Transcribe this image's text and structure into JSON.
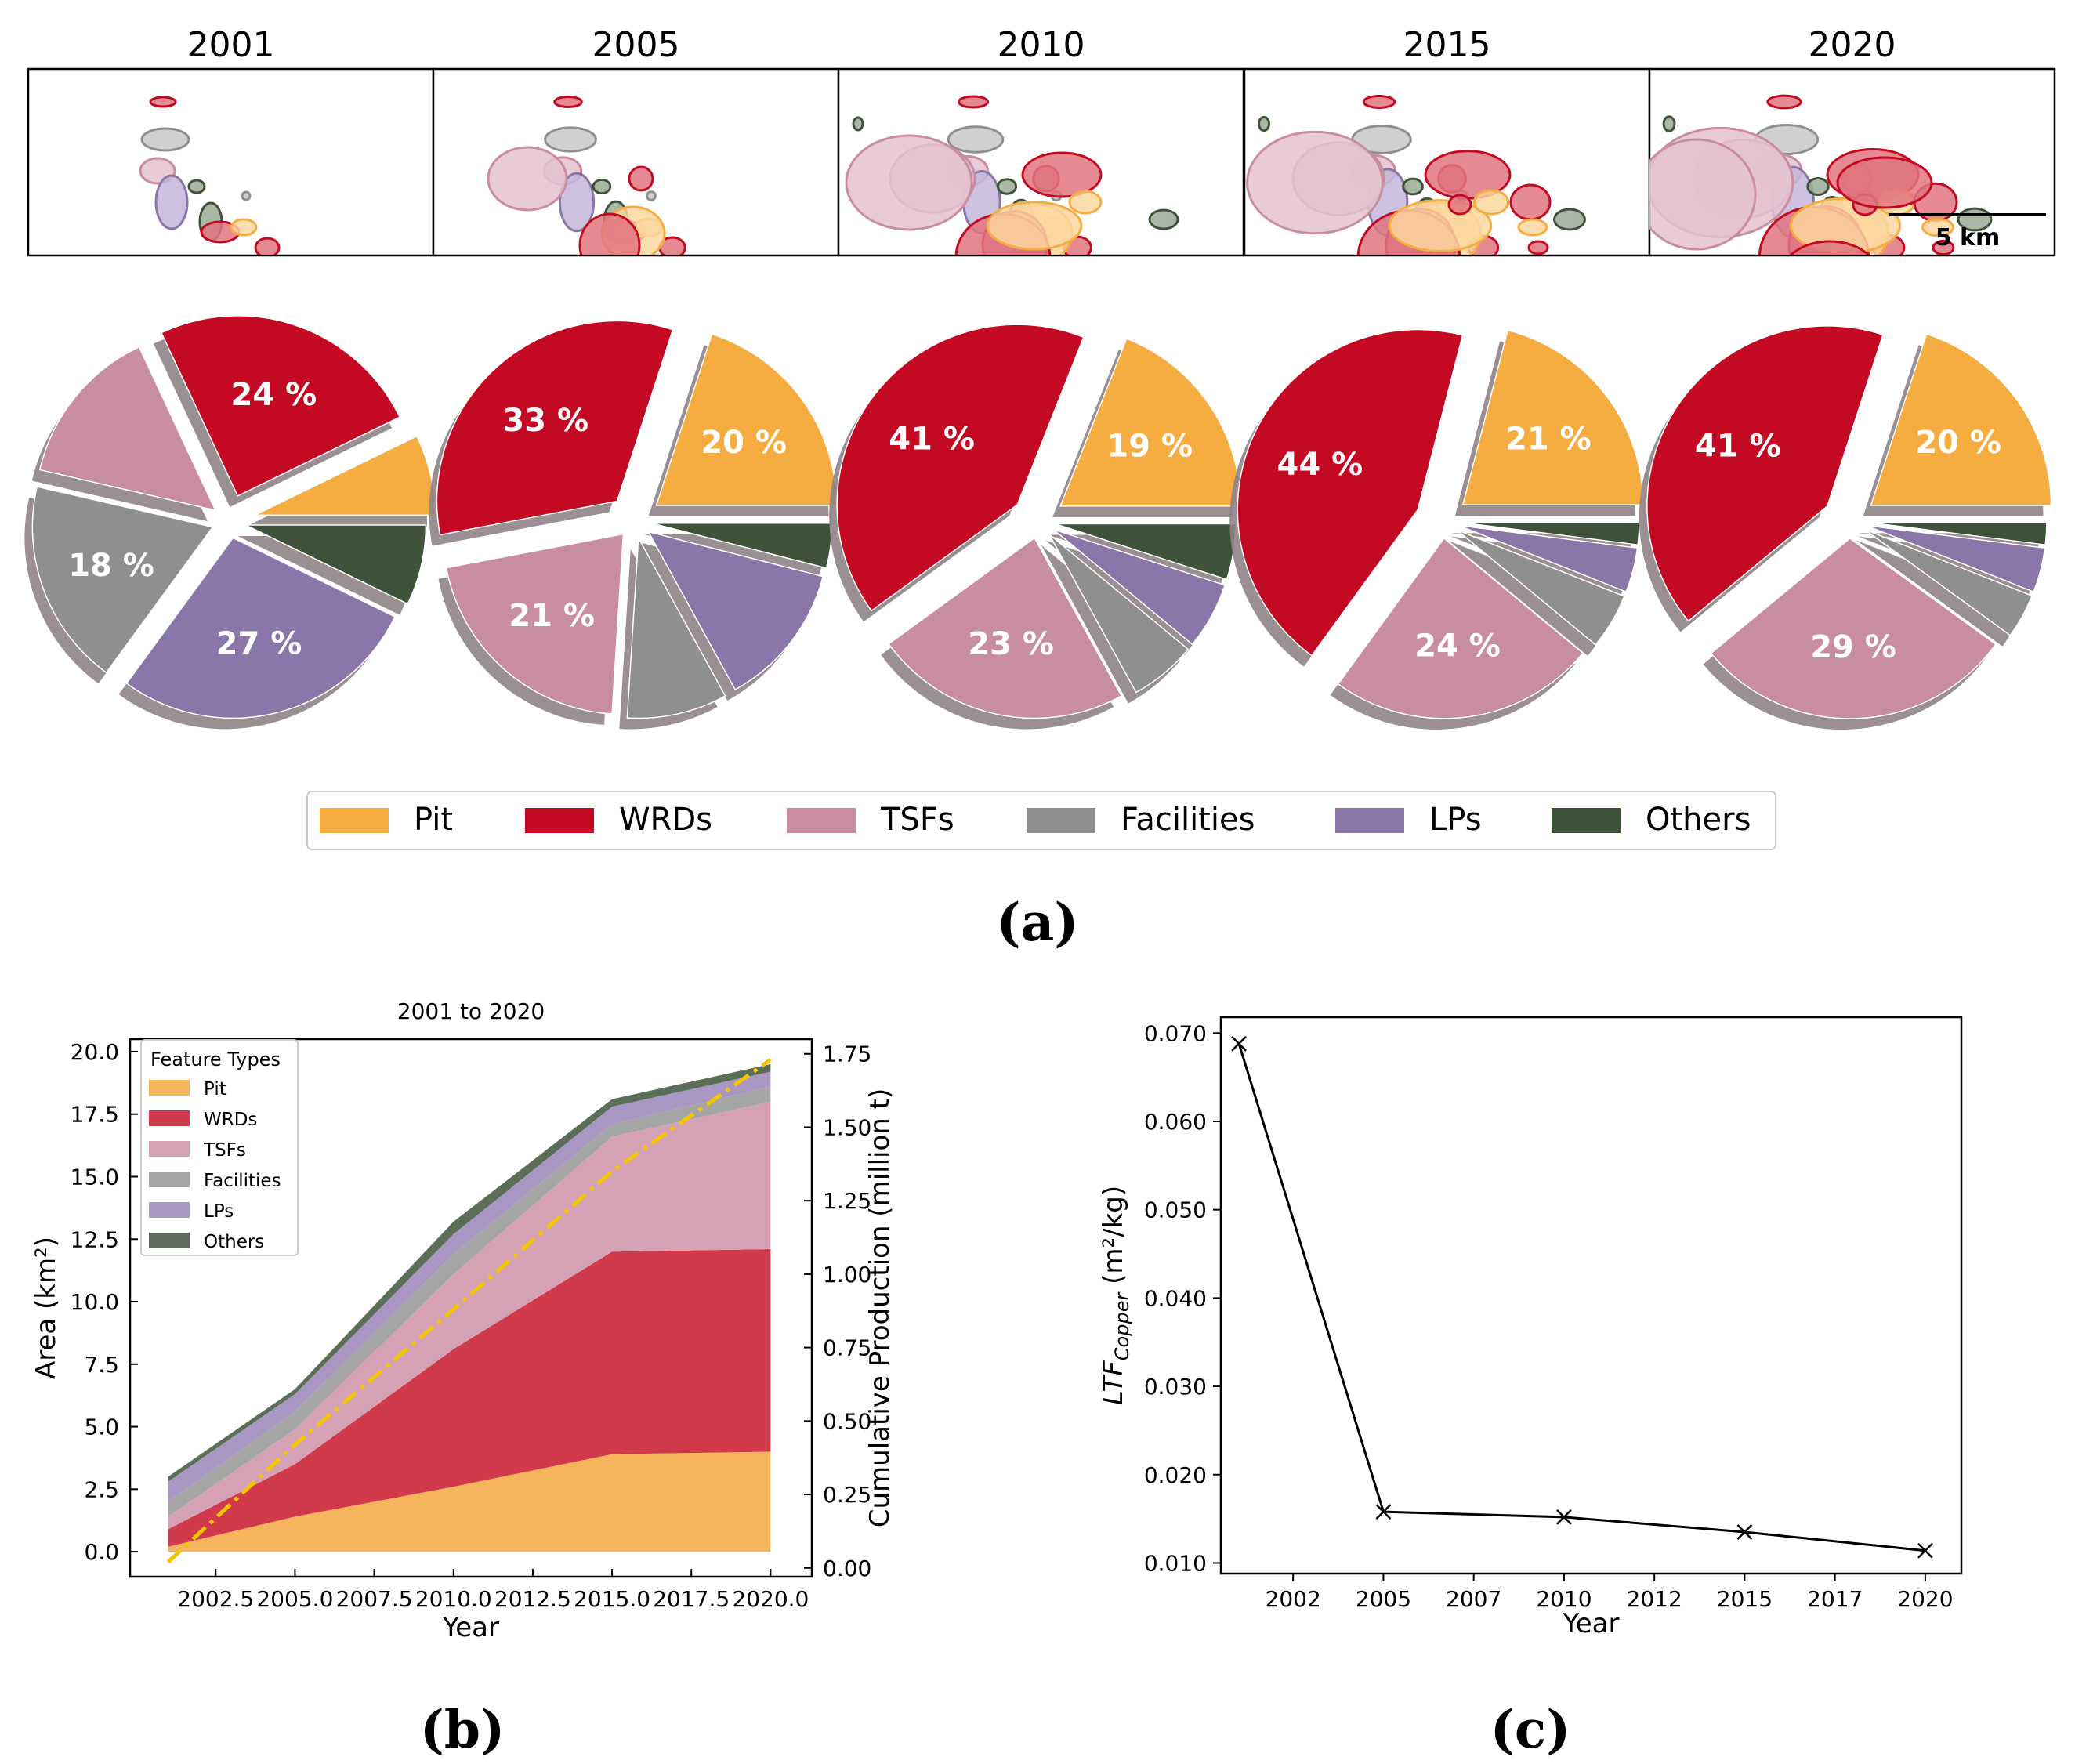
{
  "chart_data": [
    {
      "panel": "(a)",
      "type": "pie",
      "categories": [
        "Pit",
        "WRDs",
        "TSFs",
        "Facilities",
        "LPs",
        "Others"
      ],
      "colors": {
        "Pit": "#f5ad41",
        "WRDs": "#c30a22",
        "TSFs": "#c98da0",
        "Facilities": "#8f8f8f",
        "LPs": "#8a76a8",
        "Others": "#3e5339"
      },
      "legend_position": "bottom-center",
      "map_scale_label": "5 km",
      "pies": [
        {
          "year": "2001",
          "values": [
            7,
            24,
            14,
            18,
            27,
            7
          ],
          "labels": [
            "",
            "24 %",
            "",
            "18 %",
            "27 %",
            ""
          ]
        },
        {
          "year": "2005",
          "values": [
            20,
            33,
            21,
            9,
            13,
            4
          ],
          "labels": [
            "20 %",
            "33 %",
            "21 %",
            "",
            "",
            ""
          ]
        },
        {
          "year": "2010",
          "values": [
            19,
            41,
            23,
            6,
            6,
            5
          ],
          "labels": [
            "19 %",
            "41 %",
            "23 %",
            "",
            "",
            ""
          ]
        },
        {
          "year": "2015",
          "values": [
            21,
            44,
            24,
            5,
            4,
            2
          ],
          "labels": [
            "21 %",
            "44 %",
            "24 %",
            "",
            "",
            ""
          ]
        },
        {
          "year": "2020",
          "values": [
            20,
            41,
            29,
            4,
            4,
            2
          ],
          "labels": [
            "20 %",
            "41 %",
            "29 %",
            "",
            "",
            ""
          ]
        }
      ]
    },
    {
      "panel": "(b)",
      "type": "area",
      "title": "2001 to 2020",
      "xlabel": "Year",
      "ylabel": "Area (km²)",
      "y2label": "Cumulative Production (million t)",
      "legend_title": "Feature Types",
      "legend_position": "top-left",
      "x": [
        2001,
        2005,
        2010,
        2015,
        2020
      ],
      "xlim": [
        1999.8,
        2021.3
      ],
      "ylim": [
        -1.0,
        20.5
      ],
      "y2lim": [
        -0.03,
        1.8
      ],
      "xticks": [
        "2002.5",
        "2005.0",
        "2007.5",
        "2010.0",
        "2012.5",
        "2015.0",
        "2017.5",
        "2020.0"
      ],
      "yticks": [
        "0.0",
        "2.5",
        "5.0",
        "7.5",
        "10.0",
        "12.5",
        "15.0",
        "17.5",
        "20.0"
      ],
      "y2ticks": [
        "0.00",
        "0.25",
        "0.50",
        "0.75",
        "1.00",
        "1.25",
        "1.50",
        "1.75"
      ],
      "series": [
        {
          "name": "Pit",
          "color": "#f6b55d",
          "values": [
            0.2,
            1.4,
            2.6,
            3.9,
            4.0
          ]
        },
        {
          "name": "WRDs",
          "color": "#d13a4a",
          "values": [
            0.7,
            2.1,
            5.5,
            8.1,
            8.1
          ]
        },
        {
          "name": "TSFs",
          "color": "#d4a2b4",
          "values": [
            0.5,
            1.4,
            3.0,
            4.6,
            5.9
          ]
        },
        {
          "name": "Facilities",
          "color": "#a5a5a5",
          "values": [
            0.6,
            0.7,
            0.8,
            0.5,
            0.6
          ]
        },
        {
          "name": "LPs",
          "color": "#a897c3",
          "values": [
            0.8,
            0.7,
            0.8,
            0.7,
            0.6
          ]
        },
        {
          "name": "Others",
          "color": "#5b6e57",
          "values": [
            0.2,
            0.2,
            0.5,
            0.3,
            0.3
          ]
        }
      ],
      "production": {
        "name": "Cumulative Production",
        "color": "#f2c500",
        "x": [
          2001,
          2005,
          2010,
          2015,
          2020
        ],
        "values": [
          0.02,
          0.42,
          0.88,
          1.35,
          1.73
        ]
      }
    },
    {
      "panel": "(c)",
      "type": "line",
      "xlabel": "Year",
      "ylabel_main": "LTF",
      "ylabel_sub": "Copper",
      "ylabel_rest": " (m²/kg)",
      "x": [
        2001,
        2005,
        2010,
        2015,
        2020
      ],
      "values": [
        0.0688,
        0.0158,
        0.0152,
        0.0135,
        0.0114
      ],
      "xlim": [
        2000.5,
        2021.0
      ],
      "ylim": [
        0.0088,
        0.0718
      ],
      "xticks": [
        {
          "v": 2002.5,
          "label": "2002"
        },
        {
          "v": 2005,
          "label": "2005"
        },
        {
          "v": 2007.5,
          "label": "2007"
        },
        {
          "v": 2010,
          "label": "2010"
        },
        {
          "v": 2012.5,
          "label": "2012"
        },
        {
          "v": 2015,
          "label": "2015"
        },
        {
          "v": 2017.5,
          "label": "2017"
        },
        {
          "v": 2020,
          "label": "2020"
        }
      ],
      "yticks": [
        {
          "v": 0.01,
          "label": "0.010"
        },
        {
          "v": 0.02,
          "label": "0.020"
        },
        {
          "v": 0.03,
          "label": "0.030"
        },
        {
          "v": 0.04,
          "label": "0.040"
        },
        {
          "v": 0.05,
          "label": "0.050"
        },
        {
          "v": 0.06,
          "label": "0.060"
        },
        {
          "v": 0.07,
          "label": "0.070"
        }
      ]
    }
  ],
  "panel_labels": {
    "a": "(a)",
    "b": "(b)",
    "c": "(c)"
  }
}
